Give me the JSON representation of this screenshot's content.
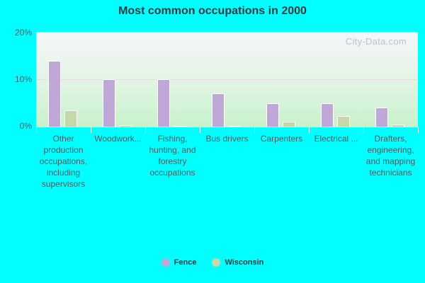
{
  "title": "Most common occupations in 2000",
  "watermark": "City-Data.com",
  "colors": {
    "fence": "#bfa8d8",
    "wisconsin": "#c5d8a6",
    "background": "#00ffff"
  },
  "y_ticks": [
    "0%",
    "10%",
    "20%"
  ],
  "legend": [
    {
      "label": "Fence",
      "color": "#bfa8d8"
    },
    {
      "label": "Wisconsin",
      "color": "#c5d8a6"
    }
  ],
  "chart_data": {
    "type": "bar",
    "title": "Most common occupations in 2000",
    "xlabel": "",
    "ylabel": "",
    "ylim": [
      0,
      20
    ],
    "y_ticks": [
      0,
      10,
      20
    ],
    "y_tick_format": "%",
    "grid": true,
    "legend_position": "bottom",
    "categories": [
      "Other production occupations, including supervisors",
      "Woodwork...",
      "Fishing, hunting, and forestry occupations",
      "Bus drivers",
      "Carpenters",
      "Electrical ...",
      "Drafters, engineering, and mapping technicians"
    ],
    "series": [
      {
        "name": "Fence",
        "values": [
          13.9,
          10.0,
          10.0,
          7.0,
          5.0,
          5.0,
          4.0
        ]
      },
      {
        "name": "Wisconsin",
        "values": [
          3.5,
          0.3,
          0.2,
          0.2,
          1.1,
          2.3,
          0.5
        ]
      }
    ]
  }
}
